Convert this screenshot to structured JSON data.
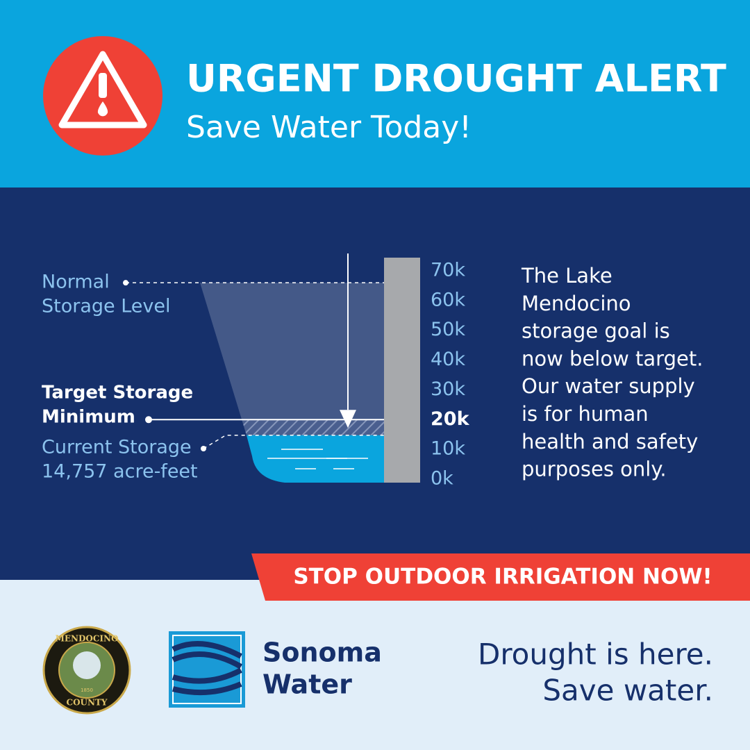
{
  "header": {
    "title": "URGENT DROUGHT ALERT",
    "subtitle": "Save Water Today!"
  },
  "gauge": {
    "ylim": [
      0,
      70000
    ],
    "ticks": [
      {
        "value": 70000,
        "label": "70k"
      },
      {
        "value": 60000,
        "label": "60k"
      },
      {
        "value": 50000,
        "label": "50k"
      },
      {
        "value": 40000,
        "label": "40k"
      },
      {
        "value": 30000,
        "label": "30k"
      },
      {
        "value": 20000,
        "label": "20k"
      },
      {
        "value": 10000,
        "label": "10k"
      },
      {
        "value": 0,
        "label": "0k"
      }
    ],
    "normal": {
      "label": [
        "Normal",
        "Storage Level"
      ],
      "value": 66000
    },
    "target": {
      "label": [
        "Target Storage",
        "Minimum"
      ],
      "value": 20000
    },
    "current": {
      "label": "Current Storage",
      "value": 14757,
      "value_label": "14,757 acre-feet"
    }
  },
  "message": [
    "The Lake",
    "Mendocino",
    "storage goal is",
    "now below target.",
    "Our water supply",
    "is for human",
    "health and safety",
    "purposes only."
  ],
  "banner": "STOP OUTDOOR IRRIGATION NOW!",
  "footer": {
    "seal": {
      "top": "MENDOCINO",
      "bottom": "COUNTY",
      "year": "1850"
    },
    "logo": [
      "Sonoma",
      "Water"
    ],
    "tagline": [
      "Drought is here.",
      "Save water."
    ]
  }
}
